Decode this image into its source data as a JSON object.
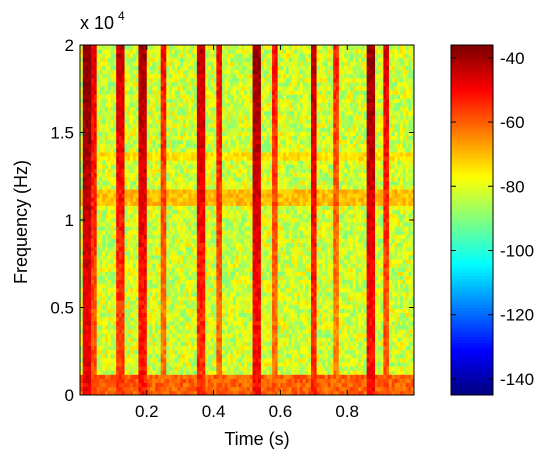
{
  "chart_data": {
    "type": "heatmap",
    "title": "",
    "xlabel": "Time (s)",
    "ylabel": "Frequency (Hz)",
    "xlim": [
      0,
      1
    ],
    "ylim": [
      0,
      20000
    ],
    "x_ticks": [
      0.2,
      0.4,
      0.6,
      0.8
    ],
    "x_tick_labels": [
      "0.2",
      "0.4",
      "0.6",
      "0.8"
    ],
    "y_ticks": [
      0,
      5000,
      10000,
      15000,
      20000
    ],
    "y_tick_labels": [
      "0",
      "0.5",
      "1",
      "1.5",
      "2"
    ],
    "y_exponent_label": "x 10",
    "y_exponent": "4",
    "colorbar": {
      "colormap": "jet",
      "range": [
        -145,
        -36
      ],
      "ticks": [
        -40,
        -60,
        -80,
        -100,
        -120,
        -140
      ],
      "tick_labels": [
        "-40",
        "-60",
        "-80",
        "-100",
        "-120",
        "-140"
      ]
    },
    "time_bins": 120,
    "freq_bins": 85,
    "background_level": -82,
    "noise_level": 9,
    "low_band": {
      "freq_max": 1200,
      "level": -60
    },
    "high_bands": [
      {
        "freq": 11300,
        "width": 400,
        "level": -70
      },
      {
        "freq": 13600,
        "width": 300,
        "level": -74
      }
    ],
    "transients": [
      {
        "time": 0.02,
        "level": -48,
        "duration": 0.012
      },
      {
        "time": 0.045,
        "level": -58,
        "duration": 0.008
      },
      {
        "time": 0.12,
        "level": -56,
        "duration": 0.01
      },
      {
        "time": 0.19,
        "level": -52,
        "duration": 0.012
      },
      {
        "time": 0.25,
        "level": -62,
        "duration": 0.008
      },
      {
        "time": 0.36,
        "level": -54,
        "duration": 0.012
      },
      {
        "time": 0.42,
        "level": -60,
        "duration": 0.008
      },
      {
        "time": 0.53,
        "level": -50,
        "duration": 0.014
      },
      {
        "time": 0.58,
        "level": -62,
        "duration": 0.008
      },
      {
        "time": 0.7,
        "level": -54,
        "duration": 0.012
      },
      {
        "time": 0.77,
        "level": -64,
        "duration": 0.008
      },
      {
        "time": 0.87,
        "level": -50,
        "duration": 0.014
      },
      {
        "time": 0.92,
        "level": -58,
        "duration": 0.008
      }
    ]
  }
}
